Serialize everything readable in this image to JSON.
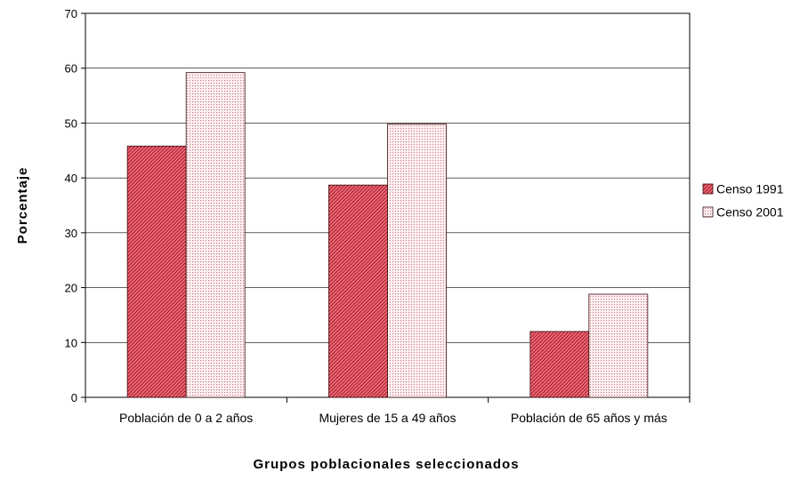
{
  "chart_data": {
    "type": "bar",
    "title": "",
    "xlabel": "Grupos poblacionales seleccionados",
    "ylabel": "Porcentaje",
    "categories": [
      "Población de 0 a 2 años",
      "Mujeres de 15 a 49 años",
      "Población de 65 años y más"
    ],
    "series": [
      {
        "name": "Censo 1991",
        "values": [
          45.8,
          38.7,
          12.0
        ],
        "color": "#e06070"
      },
      {
        "name": "Censo 2001",
        "values": [
          59.2,
          49.8,
          18.8
        ],
        "color": "#f2c8ca"
      }
    ],
    "ylim": [
      0,
      70
    ],
    "yticks": [
      0,
      10,
      20,
      30,
      40,
      50,
      60,
      70
    ],
    "grid": true,
    "legend": "right"
  }
}
